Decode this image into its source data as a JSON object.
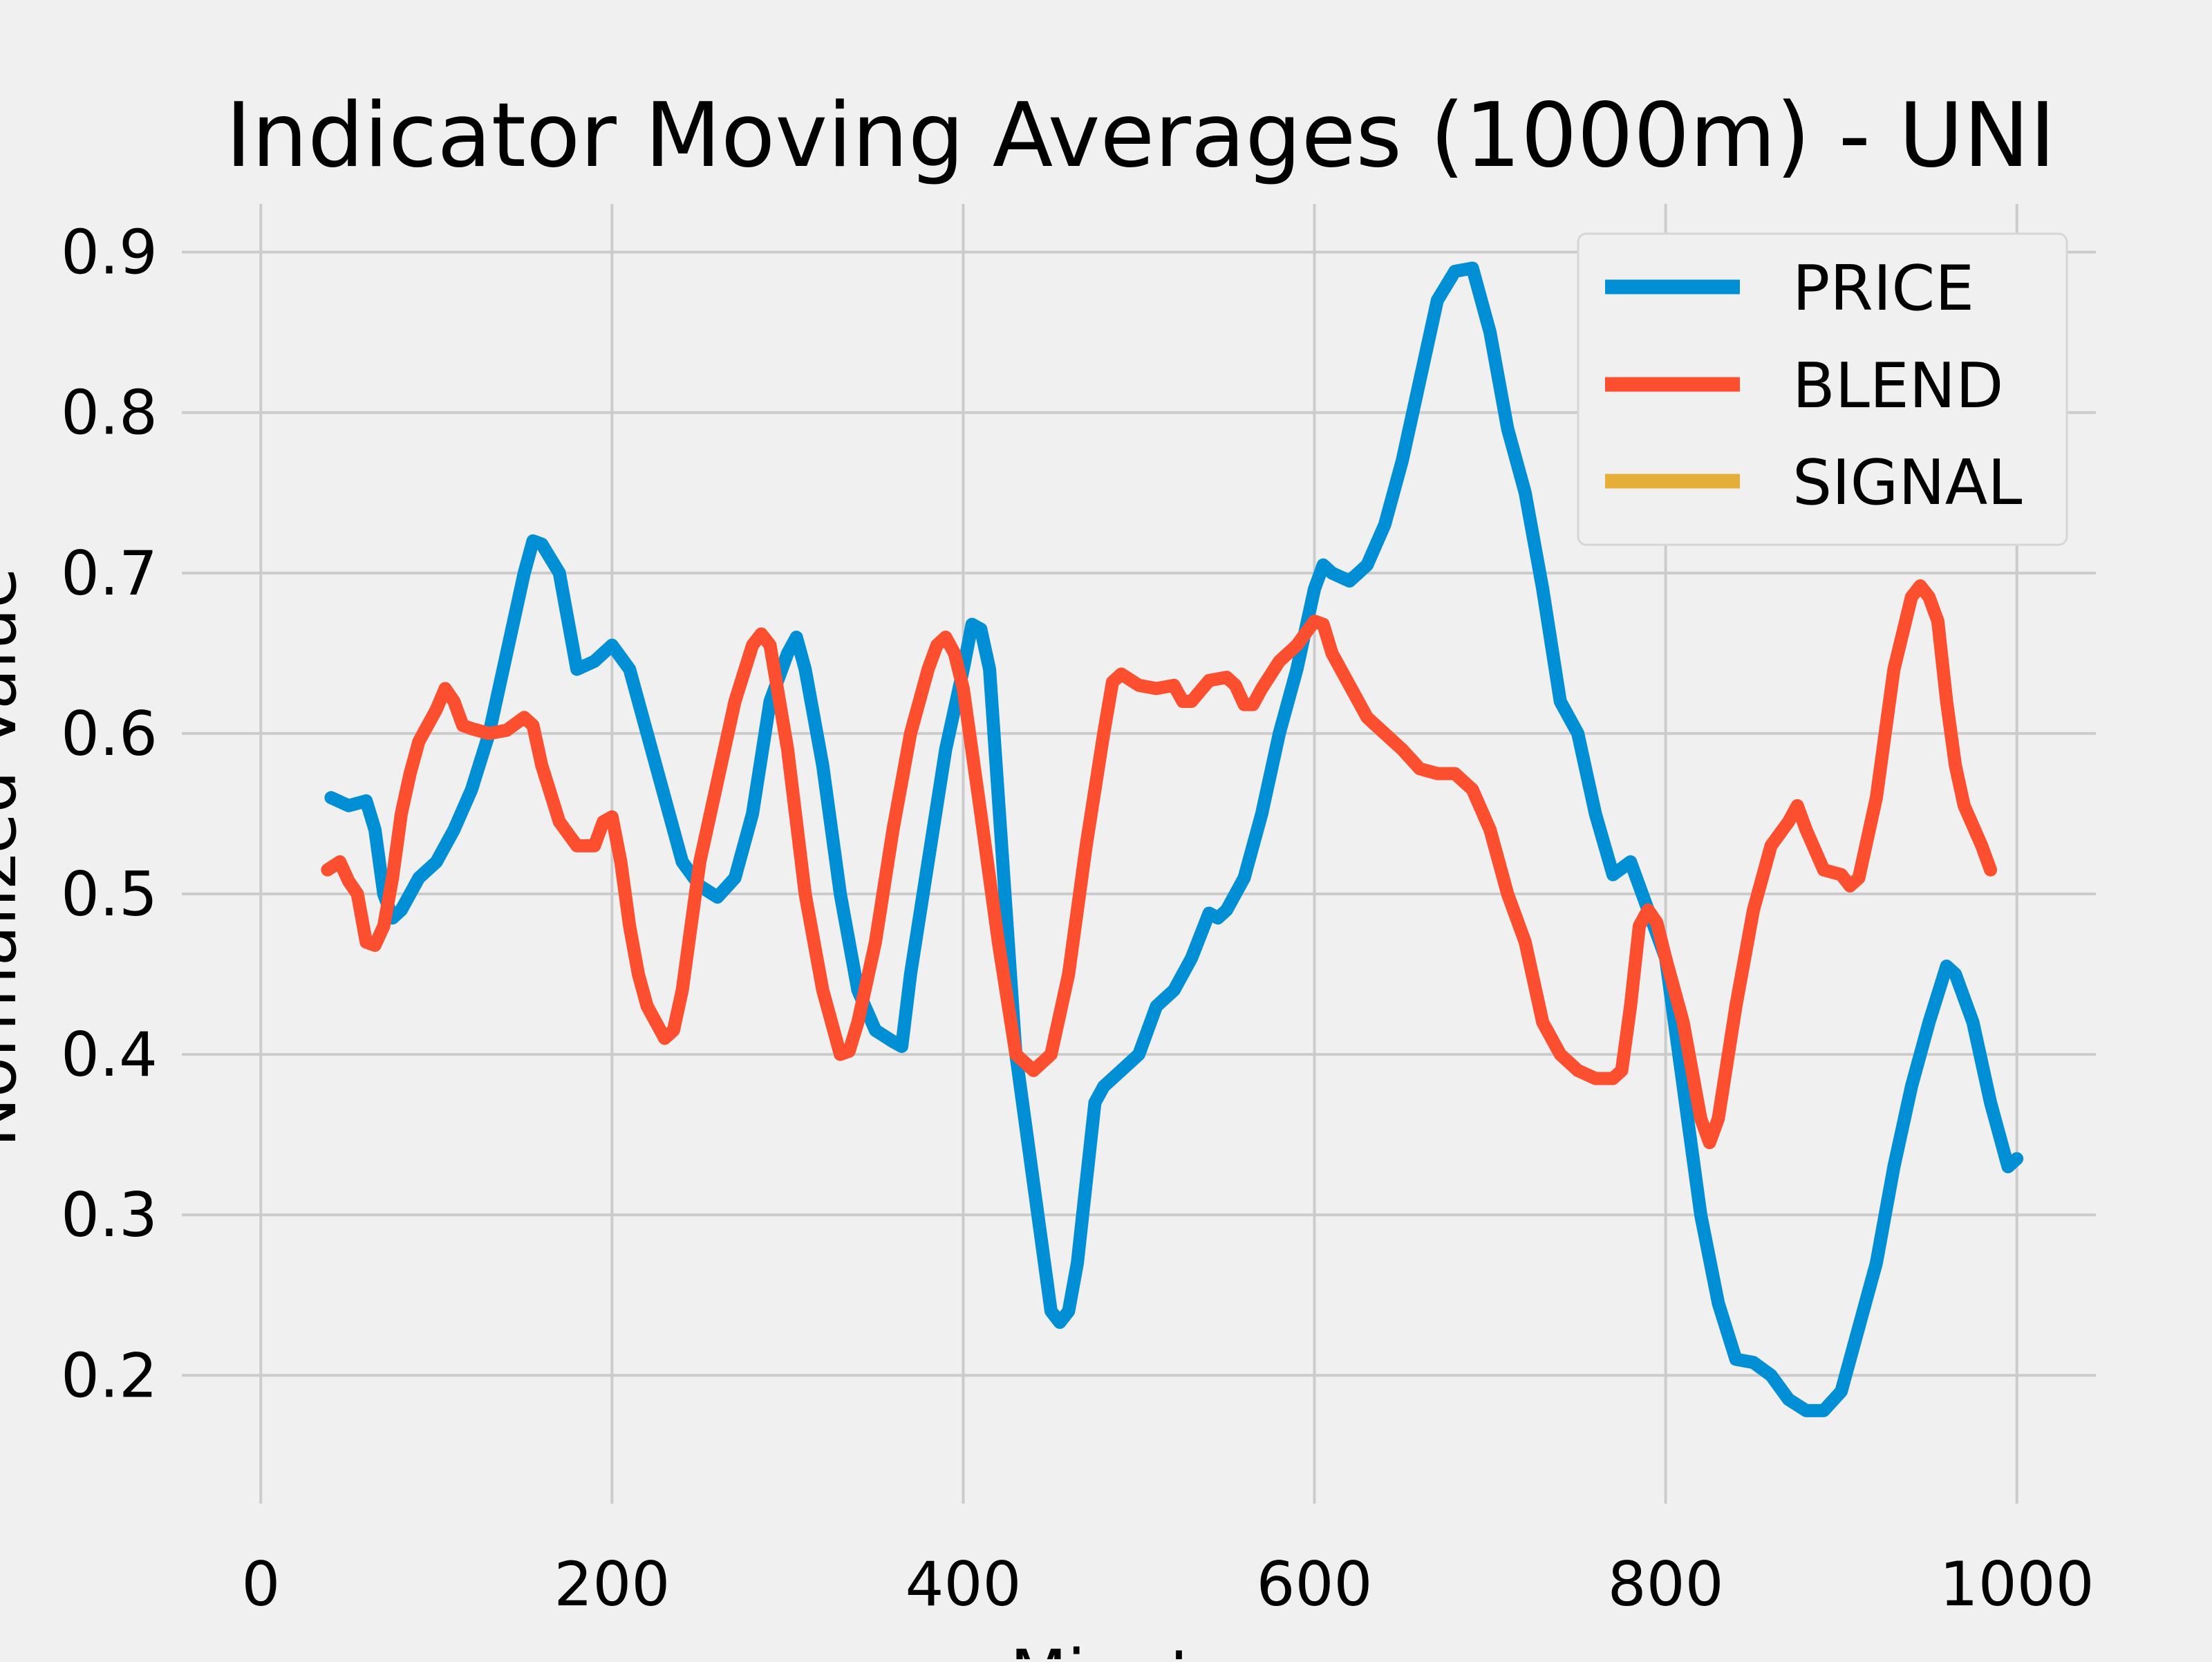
{
  "chart_data": {
    "type": "line",
    "title": "Indicator Moving Averages (1000m) - UNI",
    "xlabel": "Minutes",
    "ylabel": "Normalized Value",
    "xlim": [
      -45,
      1045
    ],
    "ylim": [
      0.12,
      0.93
    ],
    "x_ticks": [
      0,
      200,
      400,
      600,
      800,
      1000
    ],
    "y_ticks": [
      0.2,
      0.3,
      0.4,
      0.5,
      0.6,
      0.7,
      0.8,
      0.9
    ],
    "x_tick_labels": [
      "0",
      "200",
      "400",
      "600",
      "800",
      "1000"
    ],
    "y_tick_labels": [
      "0.2",
      "0.3",
      "0.4",
      "0.5",
      "0.6",
      "0.7",
      "0.8",
      "0.9"
    ],
    "grid": true,
    "legend_position": "top-right",
    "series": [
      {
        "name": "PRICE",
        "color": "#008fd5",
        "points": [
          [
            40,
            0.56
          ],
          [
            50,
            0.555
          ],
          [
            60,
            0.558
          ],
          [
            65,
            0.54
          ],
          [
            70,
            0.5
          ],
          [
            75,
            0.485
          ],
          [
            80,
            0.49
          ],
          [
            90,
            0.51
          ],
          [
            100,
            0.52
          ],
          [
            110,
            0.54
          ],
          [
            120,
            0.565
          ],
          [
            130,
            0.6
          ],
          [
            140,
            0.65
          ],
          [
            150,
            0.7
          ],
          [
            155,
            0.72
          ],
          [
            160,
            0.718
          ],
          [
            170,
            0.7
          ],
          [
            175,
            0.67
          ],
          [
            180,
            0.64
          ],
          [
            190,
            0.645
          ],
          [
            200,
            0.655
          ],
          [
            210,
            0.64
          ],
          [
            220,
            0.6
          ],
          [
            230,
            0.56
          ],
          [
            240,
            0.52
          ],
          [
            250,
            0.505
          ],
          [
            260,
            0.498
          ],
          [
            270,
            0.51
          ],
          [
            280,
            0.55
          ],
          [
            290,
            0.62
          ],
          [
            300,
            0.65
          ],
          [
            305,
            0.66
          ],
          [
            310,
            0.64
          ],
          [
            320,
            0.58
          ],
          [
            330,
            0.5
          ],
          [
            340,
            0.44
          ],
          [
            350,
            0.415
          ],
          [
            360,
            0.408
          ],
          [
            365,
            0.405
          ],
          [
            370,
            0.45
          ],
          [
            380,
            0.52
          ],
          [
            390,
            0.59
          ],
          [
            400,
            0.64
          ],
          [
            405,
            0.668
          ],
          [
            410,
            0.665
          ],
          [
            415,
            0.64
          ],
          [
            420,
            0.56
          ],
          [
            430,
            0.4
          ],
          [
            440,
            0.32
          ],
          [
            450,
            0.24
          ],
          [
            455,
            0.233
          ],
          [
            460,
            0.24
          ],
          [
            465,
            0.27
          ],
          [
            470,
            0.32
          ],
          [
            475,
            0.37
          ],
          [
            480,
            0.38
          ],
          [
            490,
            0.39
          ],
          [
            500,
            0.4
          ],
          [
            510,
            0.43
          ],
          [
            520,
            0.44
          ],
          [
            530,
            0.46
          ],
          [
            540,
            0.488
          ],
          [
            545,
            0.485
          ],
          [
            550,
            0.49
          ],
          [
            560,
            0.51
          ],
          [
            570,
            0.55
          ],
          [
            580,
            0.6
          ],
          [
            590,
            0.64
          ],
          [
            600,
            0.69
          ],
          [
            605,
            0.705
          ],
          [
            610,
            0.7
          ],
          [
            620,
            0.695
          ],
          [
            630,
            0.705
          ],
          [
            640,
            0.73
          ],
          [
            650,
            0.77
          ],
          [
            660,
            0.82
          ],
          [
            670,
            0.87
          ],
          [
            680,
            0.888
          ],
          [
            690,
            0.89
          ],
          [
            700,
            0.85
          ],
          [
            710,
            0.79
          ],
          [
            720,
            0.75
          ],
          [
            730,
            0.69
          ],
          [
            740,
            0.62
          ],
          [
            750,
            0.6
          ],
          [
            760,
            0.55
          ],
          [
            770,
            0.512
          ],
          [
            780,
            0.52
          ],
          [
            790,
            0.49
          ],
          [
            800,
            0.46
          ],
          [
            810,
            0.38
          ],
          [
            820,
            0.3
          ],
          [
            830,
            0.245
          ],
          [
            840,
            0.21
          ],
          [
            850,
            0.208
          ],
          [
            860,
            0.2
          ],
          [
            870,
            0.185
          ],
          [
            880,
            0.178
          ],
          [
            890,
            0.178
          ],
          [
            900,
            0.19
          ],
          [
            910,
            0.23
          ],
          [
            920,
            0.27
          ],
          [
            930,
            0.33
          ],
          [
            940,
            0.38
          ],
          [
            950,
            0.42
          ],
          [
            960,
            0.455
          ],
          [
            965,
            0.45
          ],
          [
            975,
            0.42
          ],
          [
            985,
            0.37
          ],
          [
            995,
            0.33
          ],
          [
            1000,
            0.335
          ]
        ]
      },
      {
        "name": "BLEND",
        "color": "#fc4f30",
        "points": [
          [
            38,
            0.515
          ],
          [
            45,
            0.52
          ],
          [
            50,
            0.508
          ],
          [
            55,
            0.5
          ],
          [
            60,
            0.47
          ],
          [
            65,
            0.468
          ],
          [
            70,
            0.48
          ],
          [
            75,
            0.51
          ],
          [
            80,
            0.55
          ],
          [
            85,
            0.575
          ],
          [
            90,
            0.595
          ],
          [
            100,
            0.615
          ],
          [
            105,
            0.628
          ],
          [
            110,
            0.62
          ],
          [
            115,
            0.605
          ],
          [
            120,
            0.603
          ],
          [
            130,
            0.6
          ],
          [
            140,
            0.602
          ],
          [
            150,
            0.61
          ],
          [
            155,
            0.605
          ],
          [
            160,
            0.58
          ],
          [
            170,
            0.545
          ],
          [
            180,
            0.53
          ],
          [
            190,
            0.53
          ],
          [
            195,
            0.545
          ],
          [
            200,
            0.548
          ],
          [
            205,
            0.52
          ],
          [
            210,
            0.48
          ],
          [
            215,
            0.45
          ],
          [
            220,
            0.43
          ],
          [
            230,
            0.41
          ],
          [
            235,
            0.415
          ],
          [
            240,
            0.44
          ],
          [
            245,
            0.48
          ],
          [
            250,
            0.52
          ],
          [
            260,
            0.57
          ],
          [
            270,
            0.62
          ],
          [
            280,
            0.655
          ],
          [
            285,
            0.662
          ],
          [
            290,
            0.655
          ],
          [
            300,
            0.59
          ],
          [
            310,
            0.5
          ],
          [
            320,
            0.44
          ],
          [
            330,
            0.4
          ],
          [
            335,
            0.402
          ],
          [
            340,
            0.42
          ],
          [
            350,
            0.47
          ],
          [
            360,
            0.54
          ],
          [
            370,
            0.6
          ],
          [
            380,
            0.64
          ],
          [
            385,
            0.655
          ],
          [
            390,
            0.66
          ],
          [
            395,
            0.65
          ],
          [
            400,
            0.628
          ],
          [
            410,
            0.55
          ],
          [
            420,
            0.47
          ],
          [
            430,
            0.4
          ],
          [
            440,
            0.39
          ],
          [
            450,
            0.4
          ],
          [
            460,
            0.45
          ],
          [
            470,
            0.53
          ],
          [
            480,
            0.6
          ],
          [
            485,
            0.632
          ],
          [
            490,
            0.637
          ],
          [
            500,
            0.63
          ],
          [
            510,
            0.628
          ],
          [
            520,
            0.63
          ],
          [
            525,
            0.62
          ],
          [
            530,
            0.62
          ],
          [
            540,
            0.633
          ],
          [
            550,
            0.635
          ],
          [
            555,
            0.63
          ],
          [
            560,
            0.618
          ],
          [
            565,
            0.618
          ],
          [
            570,
            0.628
          ],
          [
            580,
            0.645
          ],
          [
            590,
            0.655
          ],
          [
            600,
            0.67
          ],
          [
            605,
            0.668
          ],
          [
            610,
            0.65
          ],
          [
            620,
            0.63
          ],
          [
            630,
            0.61
          ],
          [
            640,
            0.6
          ],
          [
            650,
            0.59
          ],
          [
            660,
            0.578
          ],
          [
            670,
            0.575
          ],
          [
            680,
            0.575
          ],
          [
            690,
            0.565
          ],
          [
            700,
            0.54
          ],
          [
            710,
            0.5
          ],
          [
            720,
            0.47
          ],
          [
            730,
            0.42
          ],
          [
            740,
            0.4
          ],
          [
            750,
            0.39
          ],
          [
            760,
            0.385
          ],
          [
            770,
            0.385
          ],
          [
            775,
            0.39
          ],
          [
            780,
            0.43
          ],
          [
            785,
            0.48
          ],
          [
            790,
            0.49
          ],
          [
            795,
            0.482
          ],
          [
            800,
            0.46
          ],
          [
            810,
            0.42
          ],
          [
            820,
            0.36
          ],
          [
            825,
            0.345
          ],
          [
            830,
            0.36
          ],
          [
            840,
            0.43
          ],
          [
            850,
            0.49
          ],
          [
            860,
            0.53
          ],
          [
            870,
            0.545
          ],
          [
            875,
            0.555
          ],
          [
            880,
            0.54
          ],
          [
            890,
            0.515
          ],
          [
            900,
            0.512
          ],
          [
            905,
            0.505
          ],
          [
            910,
            0.51
          ],
          [
            920,
            0.56
          ],
          [
            930,
            0.64
          ],
          [
            940,
            0.685
          ],
          [
            945,
            0.692
          ],
          [
            950,
            0.685
          ],
          [
            955,
            0.67
          ],
          [
            960,
            0.62
          ],
          [
            965,
            0.58
          ],
          [
            970,
            0.555
          ],
          [
            980,
            0.53
          ],
          [
            985,
            0.515
          ]
        ]
      },
      {
        "name": "SIGNAL",
        "color": "#e5ae38",
        "points": []
      }
    ]
  }
}
